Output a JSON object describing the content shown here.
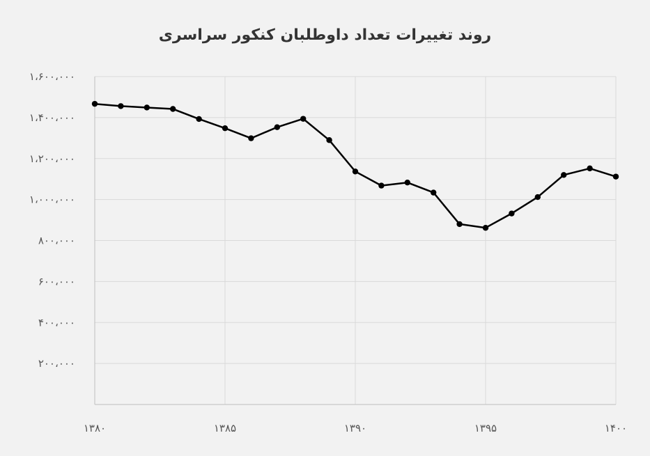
{
  "chart_data": {
    "type": "line",
    "title": "روند تغییرات تعداد داوطلبان کنکور سراسری",
    "xlabel": "",
    "ylabel": "",
    "x": [
      1380,
      1381,
      1382,
      1383,
      1384,
      1385,
      1386,
      1387,
      1388,
      1389,
      1390,
      1391,
      1392,
      1393,
      1394,
      1395,
      1396,
      1397,
      1398,
      1399,
      1400
    ],
    "series": [
      {
        "values": [
          1467000,
          1456000,
          1449000,
          1442000,
          1393000,
          1348000,
          1299000,
          1353000,
          1394000,
          1290000,
          1137000,
          1068000,
          1083000,
          1034000,
          880000,
          862000,
          932000,
          1012000,
          1120000,
          1152000,
          1112000
        ]
      }
    ],
    "xlim": [
      1380,
      1400
    ],
    "ylim": [
      0,
      1600000
    ],
    "x_ticks": [
      1380,
      1385,
      1390,
      1395,
      1400
    ],
    "x_tick_labels": [
      "۱۳۸۰",
      "۱۳۸۵",
      "۱۳۹۰",
      "۱۳۹۵",
      "۱۴۰۰"
    ],
    "y_ticks": [
      200000,
      400000,
      600000,
      800000,
      1000000,
      1200000,
      1400000,
      1600000
    ],
    "y_tick_labels": [
      "۲۰۰،۰۰۰",
      "۴۰۰،۰۰۰",
      "۶۰۰،۰۰۰",
      "۸۰۰،۰۰۰",
      "۱،۰۰۰،۰۰۰",
      "۱،۲۰۰،۰۰۰",
      "۱،۴۰۰،۰۰۰",
      "۱،۶۰۰،۰۰۰"
    ],
    "grid": true,
    "legend": "none",
    "colors": {
      "line": "#000000",
      "grid": "#d9d9d9",
      "axis": "#bfbfbf",
      "background": "#f2f2f2"
    }
  }
}
